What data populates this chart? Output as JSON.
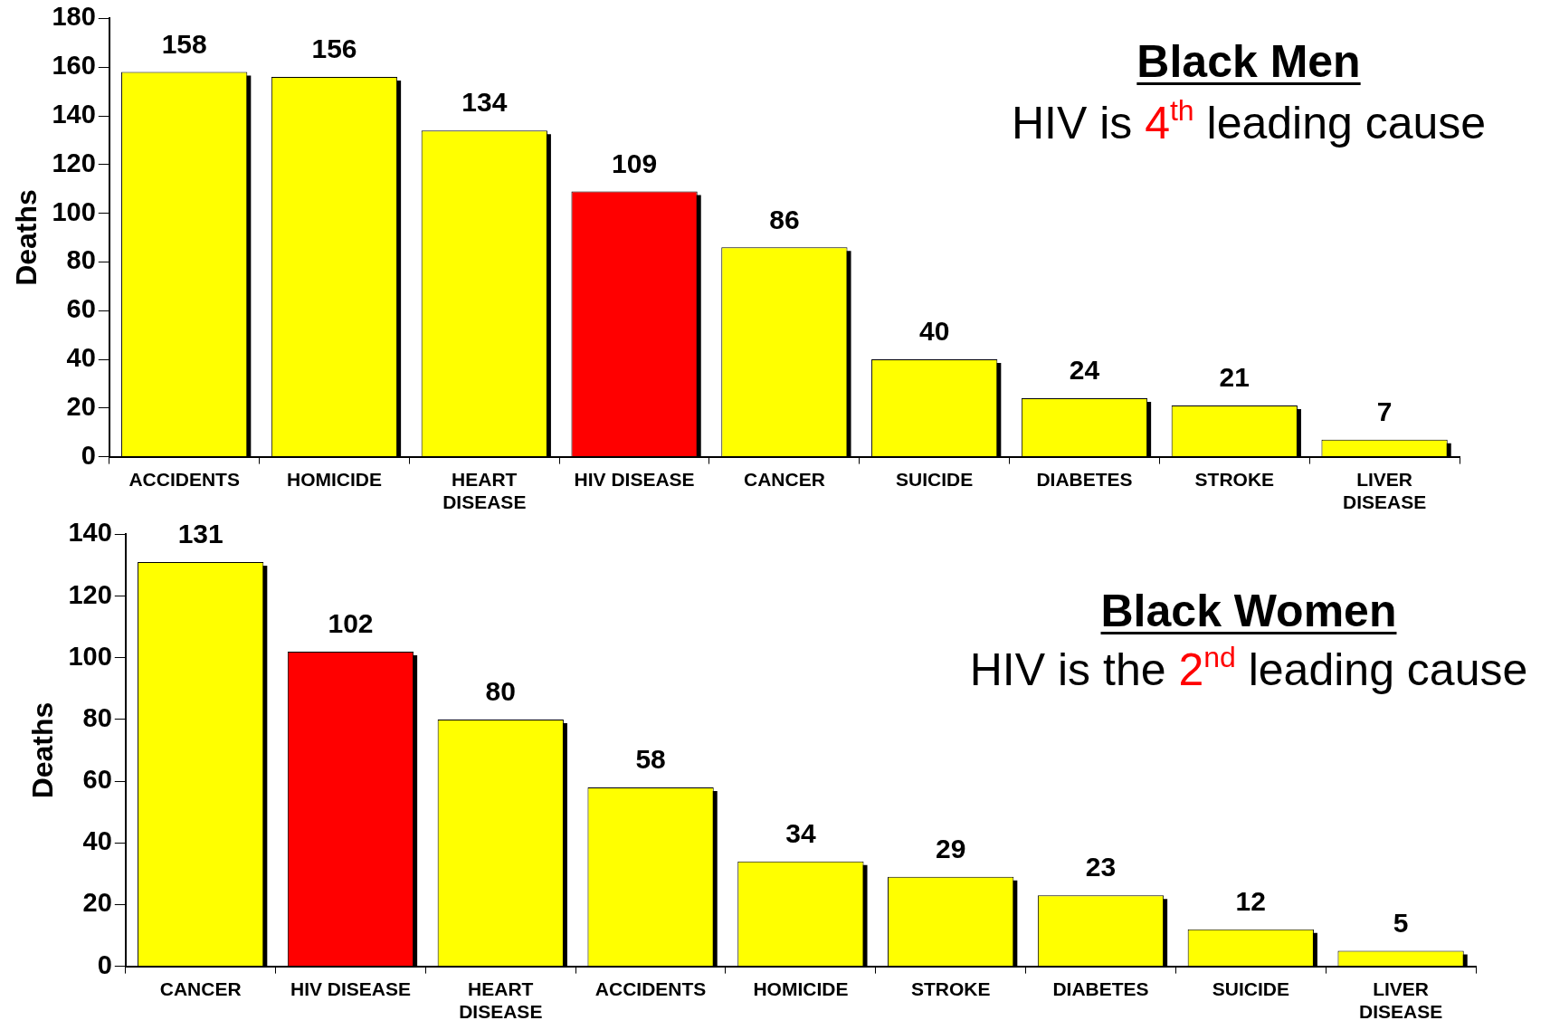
{
  "chart_data": [
    {
      "type": "bar",
      "title": "Black Men",
      "subtitle": "HIV is 4$^{th}$ leading cause",
      "ylabel": "Deaths",
      "categories": [
        "ACCIDENTS",
        "HOMICIDE",
        "HEART DISEASE",
        "HIV DISEASE",
        "CANCER",
        "SUICIDE",
        "DIABETES",
        "STROKE",
        "LIVER DISEASE"
      ],
      "values": [
        158,
        156,
        134,
        109,
        86,
        40,
        24,
        21,
        7
      ],
      "colors": [
        "#ffff00",
        "#ffff00",
        "#ffff00",
        "#ff0000",
        "#ffff00",
        "#ffff00",
        "#ffff00",
        "#ffff00",
        "#ffff00"
      ],
      "ylim": [
        0,
        180
      ],
      "yticks": [
        0,
        20,
        40,
        60,
        80,
        100,
        120,
        140,
        160,
        180
      ],
      "grid": false,
      "legend": false,
      "data_labels": true
    },
    {
      "type": "bar",
      "title": "Black Women",
      "subtitle": "HIV is the 2$^{nd}$ leading cause",
      "ylabel": "Deaths",
      "categories": [
        "CANCER",
        "HIV DISEASE",
        "HEART DISEASE",
        "ACCIDENTS",
        "HOMICIDE",
        "STROKE",
        "DIABETES",
        "SUICIDE",
        "LIVER DISEASE"
      ],
      "values": [
        131,
        102,
        80,
        58,
        34,
        29,
        23,
        12,
        5
      ],
      "colors": [
        "#ffff00",
        "#ff0000",
        "#ffff00",
        "#ffff00",
        "#ffff00",
        "#ffff00",
        "#ffff00",
        "#ffff00",
        "#ffff00"
      ],
      "ylim": [
        0,
        140
      ],
      "yticks": [
        0,
        20,
        40,
        60,
        80,
        100,
        120,
        140
      ],
      "grid": false,
      "legend": false,
      "data_labels": true
    }
  ]
}
